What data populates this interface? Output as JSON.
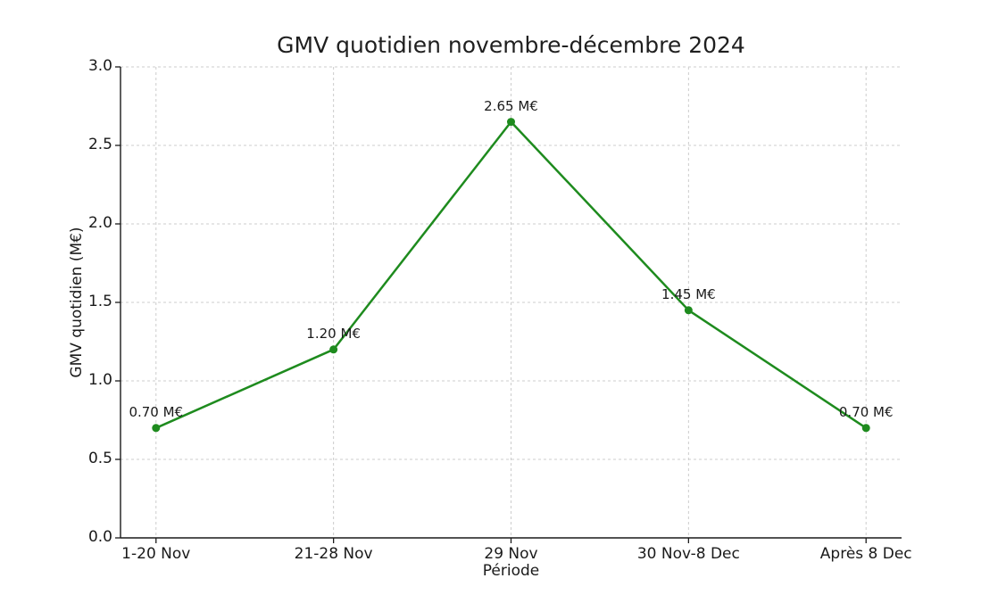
{
  "chart_data": {
    "type": "line",
    "title": "GMV quotidien novembre-décembre 2024",
    "xlabel": "Période",
    "ylabel": "GMV quotidien (M€)",
    "categories": [
      "1-20 Nov",
      "21-28 Nov",
      "29 Nov",
      "30 Nov-8 Dec",
      "Après 8 Dec"
    ],
    "values": [
      0.7,
      1.2,
      2.65,
      1.45,
      0.7
    ],
    "point_labels": [
      "0.70 M€",
      "1.20 M€",
      "2.65 M€",
      "1.45 M€",
      "0.70 M€"
    ],
    "ylim": [
      0.0,
      3.0
    ],
    "yticks": [
      "0.0",
      "0.5",
      "1.0",
      "1.5",
      "2.0",
      "2.5",
      "3.0"
    ],
    "grid": {
      "show": true,
      "style": "dashed",
      "axes": "both",
      "color": "#cccccc"
    },
    "legend": "none",
    "line_color": "#1e8b1e",
    "marker": "circle",
    "spine_color": "#1a1a1a",
    "text_color": "#1a1a1a"
  }
}
